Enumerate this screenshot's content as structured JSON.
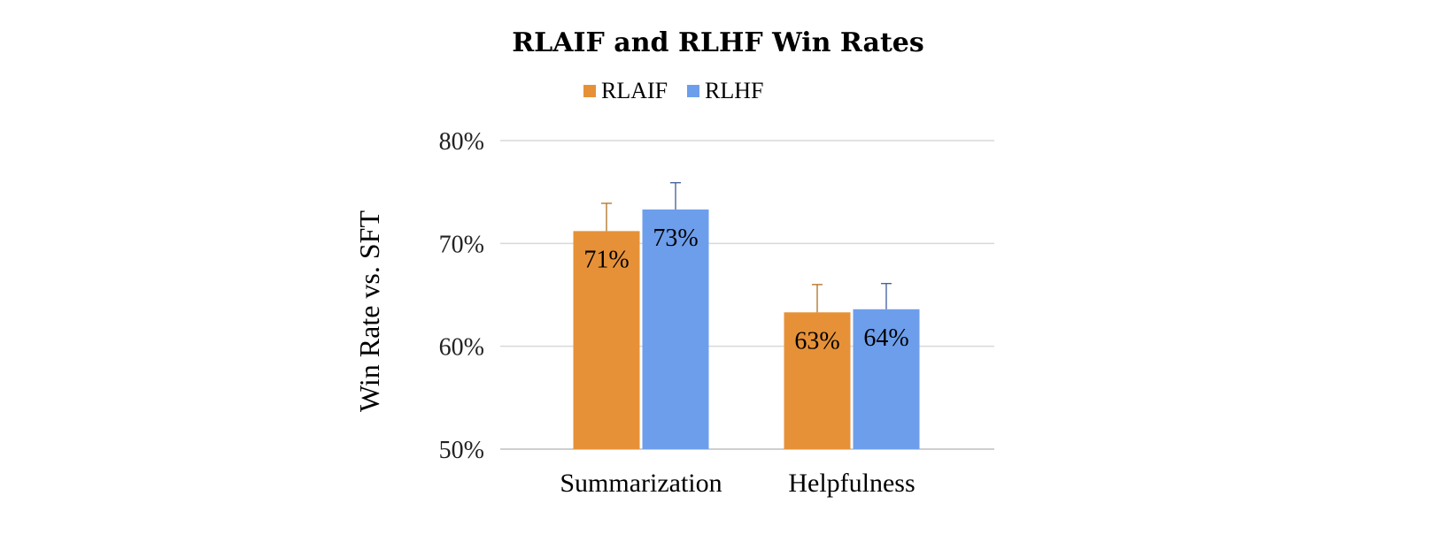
{
  "chart_data": {
    "type": "bar",
    "title": "RLAIF and RLHF Win Rates",
    "ylabel": "Win Rate vs. SFT",
    "xlabel": "",
    "categories": [
      "Summarization",
      "Helpfulness"
    ],
    "ylim": [
      0.5,
      0.8
    ],
    "yticks": [
      0.5,
      0.6,
      0.7,
      0.8
    ],
    "ytick_labels": [
      "50%",
      "60%",
      "70%",
      "80%"
    ],
    "grid": true,
    "legend_position": "top-center",
    "series": [
      {
        "name": "RLAIF",
        "color": "#E69138",
        "values": [
          0.712,
          0.633
        ],
        "error_upper": [
          0.027,
          0.027
        ],
        "error_color": "#B07020",
        "labels": [
          "71%",
          "63%"
        ]
      },
      {
        "name": "RLHF",
        "color": "#6D9EEB",
        "values": [
          0.733,
          0.636
        ],
        "error_upper": [
          0.026,
          0.025
        ],
        "error_color": "#3C5A9A",
        "labels": [
          "73%",
          "64%"
        ]
      }
    ]
  }
}
